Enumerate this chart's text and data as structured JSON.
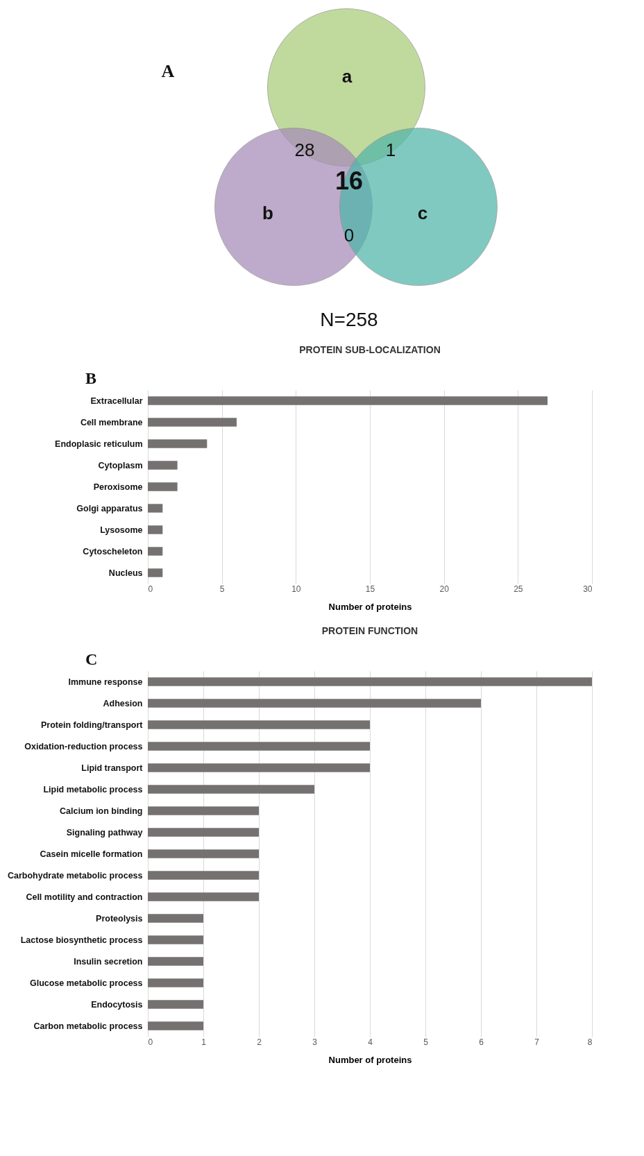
{
  "chart_data": [
    {
      "type": "other",
      "categories": [
        "a",
        "b",
        "c"
      ],
      "colors": [
        "#a8cc78",
        "#a68bb8",
        "#4fb5aa"
      ],
      "annotations": [
        "A",
        "28",
        "1",
        "16",
        "0",
        "N=258"
      ]
    },
    {
      "type": "bar",
      "orientation": "horizontal",
      "title": "PROTEIN SUB-LOCALIZATION",
      "annotations": [
        "B"
      ],
      "categories": [
        "Extracellular",
        "Cell membrane",
        "Endoplasic reticulum",
        "Cytoplasm",
        "Peroxisome",
        "Golgi apparatus",
        "Lysosome",
        "Cytoscheleton",
        "Nucleus"
      ],
      "values": [
        27,
        6,
        4,
        2,
        2,
        1,
        1,
        1,
        1
      ],
      "color": "#767171",
      "xlabel": "Number of proteins",
      "xlim": [
        0,
        30
      ],
      "xticks": [
        0,
        5,
        10,
        15,
        20,
        25,
        30
      ],
      "grid": "x"
    },
    {
      "type": "bar",
      "orientation": "horizontal",
      "title": "PROTEIN FUNCTION",
      "annotations": [
        "C"
      ],
      "categories": [
        "Immune response",
        "Adhesion",
        "Protein folding/transport",
        "Oxidation-reduction process",
        "Lipid transport",
        "Lipid metabolic process",
        "Calcium ion binding",
        "Signaling pathway",
        "Casein micelle formation",
        "Carbohydrate metabolic process",
        "Cell motility and contraction",
        "Proteolysis",
        "Lactose biosynthetic process",
        "Insulin secretion",
        "Glucose metabolic process",
        "Endocytosis",
        "Carbon metabolic process"
      ],
      "values": [
        8,
        6,
        4,
        4,
        4,
        3,
        2,
        2,
        2,
        2,
        2,
        1,
        1,
        1,
        1,
        1,
        1
      ],
      "color": "#767171",
      "xlabel": "Number of proteins",
      "xlim": [
        0,
        8
      ],
      "xticks": [
        0,
        1,
        2,
        3,
        4,
        5,
        6,
        7,
        8
      ],
      "grid": "x"
    }
  ]
}
